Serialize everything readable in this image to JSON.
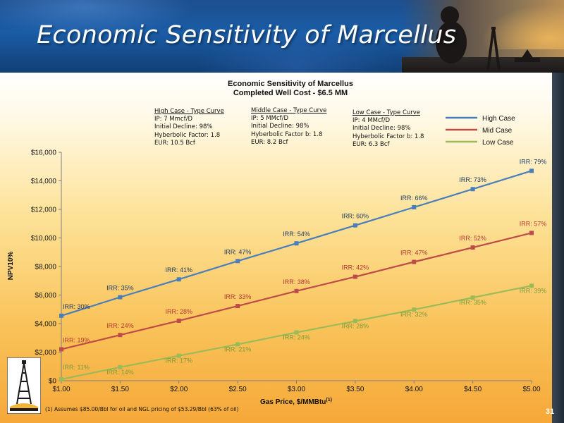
{
  "slide": {
    "title": "Economic Sensitivity of Marcellus",
    "page_number": "31",
    "footnote": "(1) Assumes $85.00/Bbl for oil and NGL pricing of $53.29/Bbl (63% of oil)"
  },
  "cases": [
    {
      "heading": "High Case - Type Curve",
      "lines": [
        "IP: 7 Mmcf/D",
        "Initial Decline: 98%",
        "Hyberbolic Factor: 1.8",
        "EUR: 10.5 Bcf"
      ]
    },
    {
      "heading": "Middle Case - Type Curve",
      "lines": [
        "IP: 5 MMcf/D",
        "Initial Decline: 98%",
        "Hyberbolic Factor b: 1.8",
        "EUR: 8.2 Bcf"
      ]
    },
    {
      "heading": "Low Case - Type Curve",
      "lines": [
        "IP: 4 MMcf/D",
        "Initial Decline: 98%",
        "Hyberbolic Factor b: 1.8",
        "EUR: 6.3 Bcf"
      ]
    }
  ],
  "chart_data": {
    "type": "line",
    "title": "Economic Sensitivity of Marcellus",
    "subtitle": "Completed Well Cost - $6.5 MM",
    "xlabel": "Gas Price,  $/MMBtu",
    "xlabel_superscript": "(1)",
    "ylabel": "NPV10%",
    "categories": [
      "$1.00",
      "$1.50",
      "$2.00",
      "$2.50",
      "$3.00",
      "$3.50",
      "$4.00",
      "$4.50",
      "$5.00"
    ],
    "x": [
      1.0,
      1.5,
      2.0,
      2.5,
      3.0,
      3.5,
      4.0,
      4.5,
      5.0
    ],
    "ylim": [
      0,
      16000
    ],
    "yticks": [
      0,
      2000,
      4000,
      6000,
      8000,
      10000,
      12000,
      14000,
      16000
    ],
    "ytick_labels": [
      "$0",
      "$2,000",
      "$4,000",
      "$6,000",
      "$8,000",
      "$10,000",
      "$12,000",
      "$14,000",
      "$16,000"
    ],
    "grid": false,
    "legend_position": "top-right",
    "series": [
      {
        "name": "High Case",
        "color": "#4a7ebb",
        "label_color": "#1f3b66",
        "values": [
          4550,
          5850,
          7100,
          8380,
          9620,
          10880,
          12150,
          13420,
          14700
        ],
        "labels": [
          "IRR: 30%",
          "IRR: 35%",
          "IRR: 41%",
          "IRR: 47%",
          "IRR: 54%",
          "IRR: 60%",
          "IRR: 66%",
          "IRR: 73%",
          "IRR: 79%"
        ]
      },
      {
        "name": "Mid Case",
        "color": "#be4b48",
        "label_color": "#b23a35",
        "values": [
          2200,
          3200,
          4200,
          5230,
          6280,
          7280,
          8320,
          9330,
          10350
        ],
        "labels": [
          "IRR: 19%",
          "IRR: 24%",
          "IRR: 28%",
          "IRR: 33%",
          "IRR: 38%",
          "IRR: 42%",
          "IRR: 47%",
          "IRR: 52%",
          "IRR: 57%"
        ]
      },
      {
        "name": "Low Case",
        "color": "#9bbb59",
        "label_color": "#7b9a3a",
        "values": [
          100,
          950,
          1750,
          2550,
          3380,
          4180,
          4980,
          5820,
          6650
        ],
        "labels": [
          "IRR: 11%",
          "IRR: 14%",
          "IRR: 17%",
          "IRR: 21%",
          "IRR: 24%",
          "IRR: 28%",
          "IRR: 32%",
          "IRR: 35%",
          "IRR: 39%"
        ]
      }
    ]
  }
}
